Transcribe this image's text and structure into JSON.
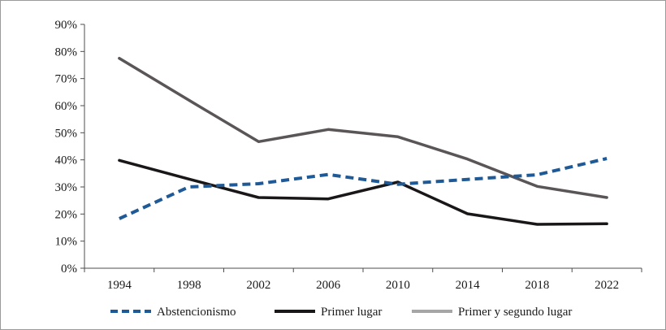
{
  "chart_data": {
    "type": "line",
    "x": [
      "1994",
      "1998",
      "2002",
      "2006",
      "2010",
      "2014",
      "2018",
      "2022"
    ],
    "y_ticks": [
      "0%",
      "10%",
      "20%",
      "30%",
      "40%",
      "50%",
      "60%",
      "70%",
      "80%",
      "90%"
    ],
    "ylim": [
      0,
      90
    ],
    "ylabel": "",
    "xlabel": "",
    "title": "",
    "grid": false,
    "legend_position": "bottom",
    "series": [
      {
        "name": "Abstencionismo",
        "values": [
          18.3,
          30.0,
          31.2,
          34.6,
          31.0,
          32.8,
          34.5,
          40.5
        ],
        "color": "#1f5a96",
        "style": "dashed"
      },
      {
        "name": "Primer lugar",
        "values": [
          39.8,
          32.9,
          26.1,
          25.6,
          31.8,
          20.1,
          16.2,
          16.4
        ],
        "color": "#1a1718",
        "style": "solid"
      },
      {
        "name": "Primer  y segundo lugar",
        "values": [
          77.5,
          62.0,
          46.7,
          51.2,
          48.5,
          40.3,
          30.2,
          26.1
        ],
        "color": "#5a5556",
        "legend_color": "#a6a6a6",
        "style": "solid"
      }
    ]
  }
}
